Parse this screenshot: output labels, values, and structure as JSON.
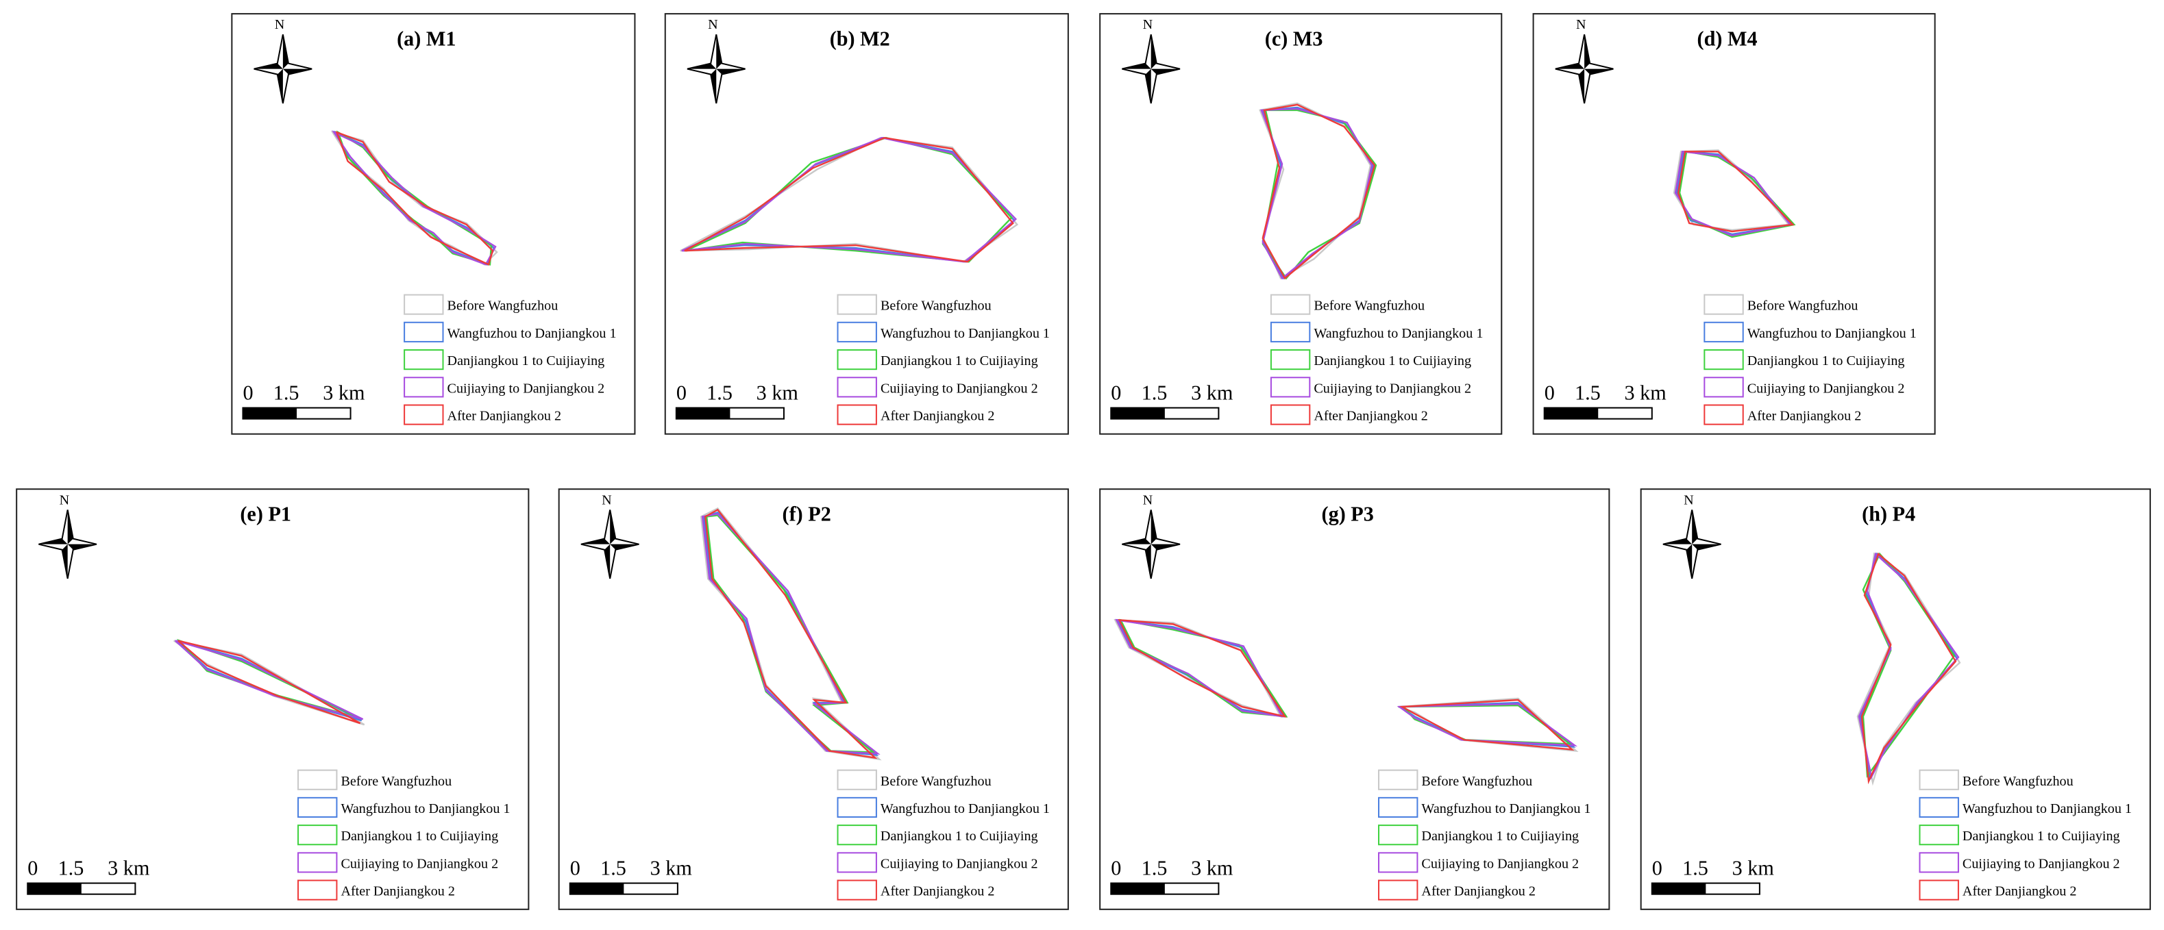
{
  "panels": [
    {
      "title": "(a) M1"
    },
    {
      "title": "(b) M2"
    },
    {
      "title": "(c) M3"
    },
    {
      "title": "(d) M4"
    },
    {
      "title": "(e) P1"
    },
    {
      "title": "(f) P2"
    },
    {
      "title": "(g) P3"
    },
    {
      "title": "(h) P4"
    }
  ],
  "legend": [
    {
      "label": "Before  Wangfuzhou",
      "color": "#c8c8c8"
    },
    {
      "label": "Wangfuzhou to Danjiangkou 1",
      "color": "#4a7fe0"
    },
    {
      "label": "Danjiangkou 1 to Cuijiaying",
      "color": "#3fd23f"
    },
    {
      "label": "Cuijiaying to Danjiangkou 2",
      "color": "#a84ce0"
    },
    {
      "label": "After Danjiangkou 2",
      "color": "#ee3a3a"
    }
  ],
  "scale_labels": [
    "0",
    "1.5",
    "3 km"
  ],
  "north": "N"
}
